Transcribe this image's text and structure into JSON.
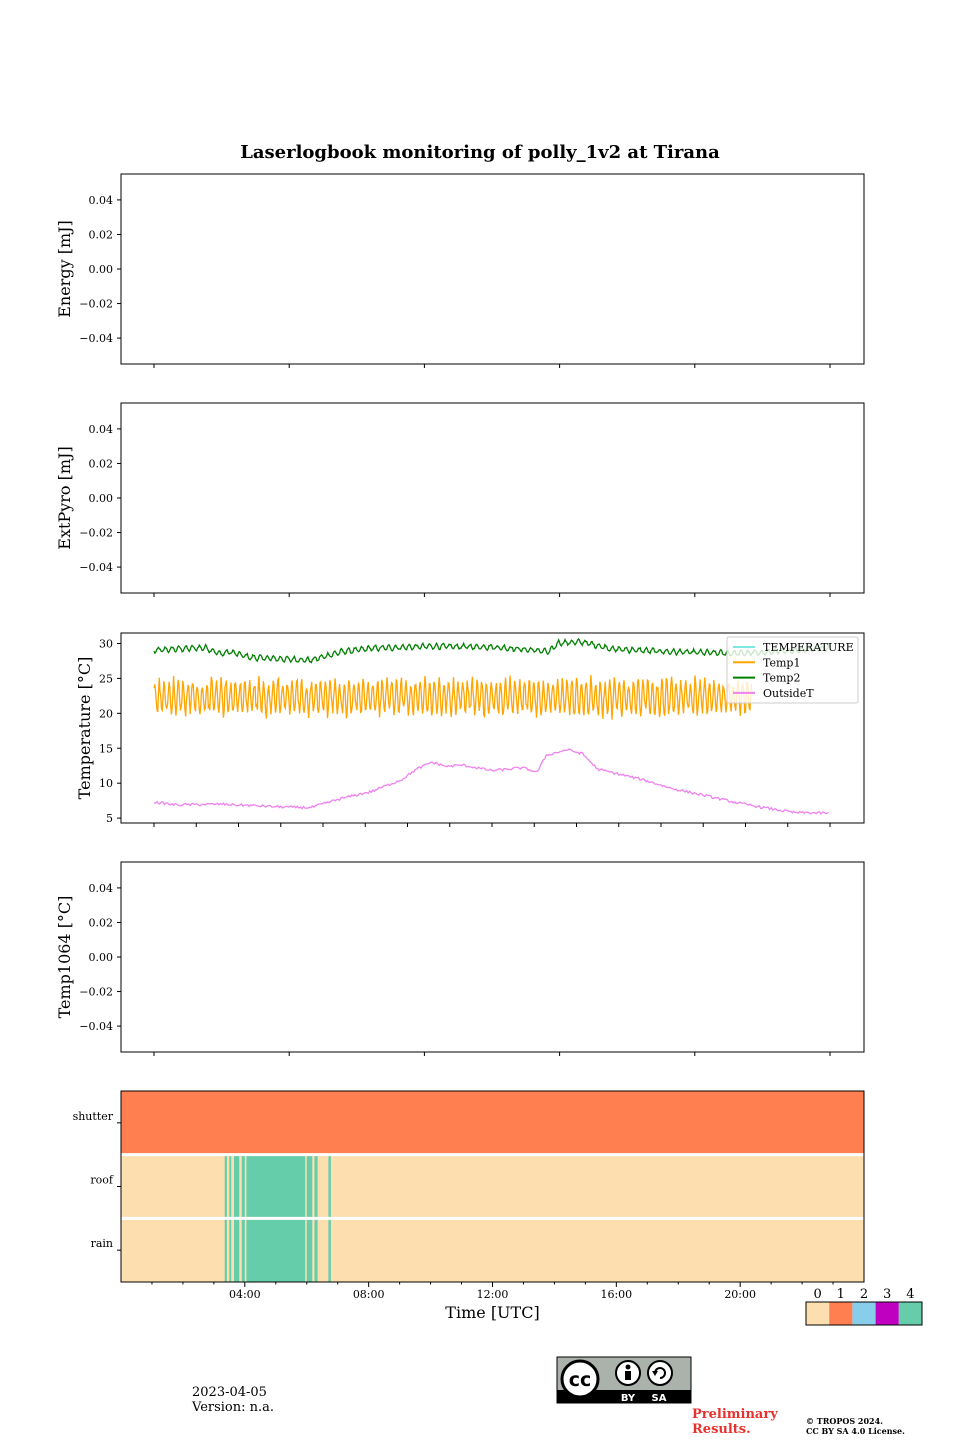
{
  "title": "Laserlogbook monitoring of polly_1v2 at Tirana",
  "footer": {
    "date": "2023-04-05",
    "version": "Version: n.a.",
    "preliminary_line1": "Preliminary",
    "preliminary_line2": "Results.",
    "copyright_line1": "© TROPOS 2024.",
    "copyright_line2": "CC BY SA 4.0 License.",
    "license_badge_left": "BY",
    "license_badge_right": "SA",
    "license_cc": "cc",
    "preliminary_color": "#e8322e"
  },
  "chart_data": [
    {
      "type": "line",
      "ylabel": "Energy [mJ]",
      "ylim": [
        -0.055,
        0.055
      ],
      "yticks": [
        0.04,
        0.02,
        0.0,
        -0.02,
        -0.04
      ],
      "ytick_labels": [
        "0.04",
        "0.02",
        "0.00",
        "−0.02",
        "−0.04"
      ],
      "series": []
    },
    {
      "type": "line",
      "ylabel": "ExtPyro [mJ]",
      "ylim": [
        -0.055,
        0.055
      ],
      "yticks": [
        0.04,
        0.02,
        0.0,
        -0.02,
        -0.04
      ],
      "ytick_labels": [
        "0.04",
        "0.02",
        "0.00",
        "−0.02",
        "−0.04"
      ],
      "series": []
    },
    {
      "type": "line",
      "ylabel": "Temperature [°C]",
      "ylim": [
        4.3,
        31.5
      ],
      "yticks": [
        30,
        25,
        20,
        15,
        10,
        5
      ],
      "ytick_labels": [
        "30",
        "25",
        "20",
        "15",
        "10",
        "5"
      ],
      "legend": "top-right",
      "series": [
        {
          "name": "TEMPERATURE",
          "color": "#7ee8e0",
          "values": []
        },
        {
          "name": "Temp1",
          "color": "#ffa500",
          "x_hours": [
            0.8,
            20.6
          ],
          "baseline": 22.3,
          "amplitude": 2.8
        },
        {
          "name": "Temp2",
          "color": "#008000",
          "x_hours": [
            0.8,
            1.5,
            2.5,
            3.0,
            3.3,
            4.0,
            5.0,
            6.0,
            7.0,
            8.0,
            10.0,
            12.0,
            13.5,
            13.9,
            14.2,
            15.0,
            16.0,
            18.0,
            20.0,
            21.0,
            22.0,
            23.2
          ],
          "values": [
            29.0,
            29.2,
            29.4,
            28.5,
            28.8,
            28.0,
            27.8,
            27.6,
            28.8,
            29.3,
            29.6,
            29.5,
            29.0,
            28.8,
            30.1,
            30.2,
            29.2,
            28.8,
            28.6,
            28.7,
            29.0,
            29.4
          ]
        },
        {
          "name": "OutsideT",
          "color": "#ee82ee",
          "x_hours": [
            0.8,
            1.5,
            3.0,
            4.0,
            5.0,
            6.0,
            7.0,
            8.0,
            9.0,
            9.5,
            10.0,
            10.5,
            11.0,
            12.0,
            13.0,
            13.5,
            13.8,
            14.5,
            15.0,
            15.5,
            16.0,
            17.0,
            18.0,
            19.0,
            20.0,
            21.0,
            22.0,
            23.2
          ],
          "values": [
            7.3,
            6.9,
            7.0,
            6.8,
            6.6,
            6.5,
            7.8,
            8.8,
            10.5,
            12.0,
            13.0,
            12.4,
            12.6,
            11.8,
            12.2,
            11.6,
            14.0,
            14.8,
            14.2,
            12.0,
            11.5,
            10.5,
            9.2,
            8.3,
            7.3,
            6.5,
            5.8,
            5.7
          ]
        }
      ]
    },
    {
      "type": "line",
      "ylabel": "Temp1064 [°C]",
      "ylim": [
        -0.055,
        0.055
      ],
      "yticks": [
        0.04,
        0.02,
        0.0,
        -0.02,
        -0.04
      ],
      "ytick_labels": [
        "0.04",
        "0.02",
        "0.00",
        "−0.02",
        "−0.04"
      ],
      "series": []
    },
    {
      "type": "heatmap",
      "xlabel": "Time [UTC]",
      "xlim_hours": [
        0,
        24
      ],
      "xticks_hours": [
        4,
        8,
        12,
        16,
        20
      ],
      "xtick_labels": [
        "04:00",
        "08:00",
        "12:00",
        "16:00",
        "20:00"
      ],
      "rows": [
        "shutter",
        "roof",
        "rain"
      ],
      "row_base_values": [
        1,
        0,
        0
      ],
      "status_4_intervals_hours": [
        [
          3.35,
          3.42
        ],
        [
          3.5,
          3.56
        ],
        [
          3.65,
          3.82
        ],
        [
          3.9,
          4.0
        ],
        [
          4.05,
          5.95
        ],
        [
          6.0,
          6.18
        ],
        [
          6.25,
          6.35
        ],
        [
          6.7,
          6.78
        ]
      ],
      "status_4_rows": [
        "roof",
        "rain"
      ],
      "colorbar": {
        "labels": [
          "0",
          "1",
          "2",
          "3",
          "4"
        ],
        "colors": [
          "#fddeaf",
          "#ff7f50",
          "#87ceeb",
          "#c000c0",
          "#66cdaa"
        ]
      }
    }
  ]
}
